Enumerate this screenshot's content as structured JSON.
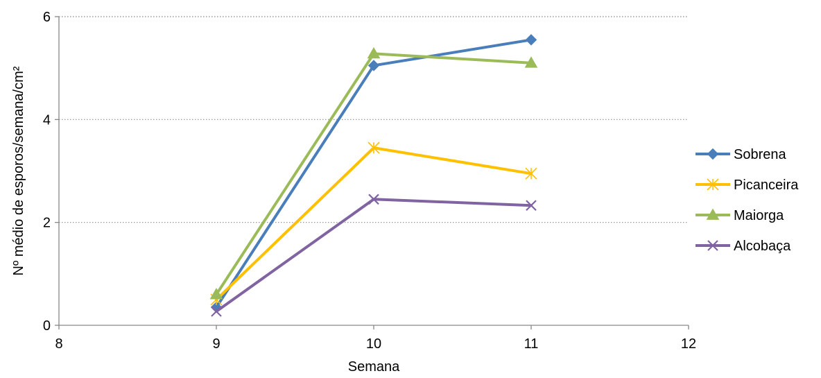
{
  "chart_data": {
    "type": "line",
    "xlabel": "Semana",
    "ylabel": "Nº  médio de esporos/semana/cm²",
    "xlim": [
      8,
      12
    ],
    "ylim": [
      0,
      6
    ],
    "xticks": [
      "8",
      "9",
      "10",
      "11",
      "12"
    ],
    "yticks": [
      "0",
      "2",
      "4",
      "6"
    ],
    "grid": "horizontal-dotted",
    "legend_position": "right",
    "x": [
      9,
      10,
      11
    ],
    "series": [
      {
        "name": "Sobrena",
        "values": [
          0.35,
          5.05,
          5.55
        ],
        "color": "#4a7ebb",
        "marker": "diamond"
      },
      {
        "name": "Picanceira",
        "values": [
          0.5,
          3.45,
          2.95
        ],
        "color": "#ffc000",
        "marker": "asterisk"
      },
      {
        "name": "Maiorga",
        "values": [
          0.6,
          5.28,
          5.1
        ],
        "color": "#9bbb59",
        "marker": "triangle"
      },
      {
        "name": "Alcobaça",
        "values": [
          0.27,
          2.45,
          2.33
        ],
        "color": "#8064a2",
        "marker": "x"
      }
    ]
  }
}
